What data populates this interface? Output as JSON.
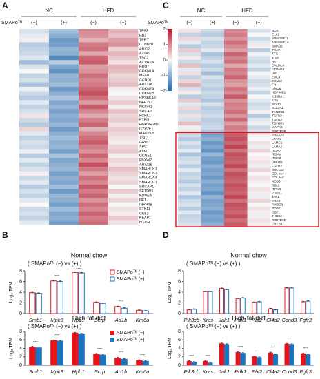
{
  "chart_data": [
    {
      "type": "heatmap",
      "panel": "A",
      "groups": [
        "NC",
        "HFD"
      ],
      "row_header": "SMAPoᵀᴺ",
      "columns": [
        "(−)",
        "(+)",
        "(−)",
        "(+)"
      ],
      "zlim": [
        -2,
        2
      ],
      "colors": {
        "low": "#2166ac",
        "mid": "#f7f7f7",
        "high": "#b2182b"
      },
      "rows": [
        "TP53",
        "RB1",
        "TERT",
        "CTNNB1",
        "ARID2",
        "AXIN1",
        "TSC2",
        "ACVR2A",
        "BRD7",
        "CDKN1A",
        "MEN1",
        "CCND1",
        "ARID1A",
        "CDKN2A",
        "CDKN2B",
        "RPS6KA3",
        "NFE2L2",
        "NCOR1",
        "SRCAP",
        "FCRL1",
        "PTEN",
        "HNRNP2B1",
        "CYP2E1",
        "MAP2K3",
        "TSC1",
        "GRPC",
        "APC",
        "ATM",
        "CCNE1",
        "FBXW7",
        "ARID1B",
        "SMARCE1",
        "SMARCB1",
        "SMARCA4",
        "SMARCC1",
        "SRCAP1",
        "SETDB1",
        "KDM6A",
        "NF1",
        "INPP4B",
        "STK11",
        "CUL3",
        "KEAP1",
        "mTOR"
      ],
      "values": [
        [
          -0.3,
          -0.8,
          1.0,
          0.6
        ],
        [
          -0.2,
          -1.0,
          0.9,
          0.5
        ],
        [
          0.1,
          -1.3,
          0.6,
          0.8
        ],
        [
          -0.6,
          -1.2,
          1.1,
          0.9
        ],
        [
          -0.5,
          -0.9,
          1.2,
          0.3
        ],
        [
          -0.4,
          -1.0,
          0.7,
          0.6
        ],
        [
          -0.2,
          -1.5,
          1.3,
          0.4
        ],
        [
          -0.8,
          -0.6,
          1.4,
          0.2
        ],
        [
          -0.3,
          -1.1,
          0.8,
          0.6
        ],
        [
          0.0,
          -1.4,
          0.9,
          0.5
        ],
        [
          -0.5,
          -0.9,
          1.2,
          0.3
        ],
        [
          -0.3,
          -1.0,
          1.0,
          0.4
        ],
        [
          -0.7,
          -0.8,
          1.1,
          0.5
        ],
        [
          -0.1,
          -1.3,
          1.3,
          0.1
        ],
        [
          -0.4,
          -1.0,
          1.5,
          0.0
        ],
        [
          -0.6,
          -0.7,
          1.2,
          0.2
        ],
        [
          -0.2,
          -1.1,
          0.8,
          0.4
        ],
        [
          -0.5,
          -0.9,
          1.4,
          0.1
        ],
        [
          -0.3,
          -1.2,
          1.0,
          0.5
        ],
        [
          0.2,
          -1.0,
          0.7,
          0.3
        ],
        [
          -0.4,
          -1.1,
          1.1,
          0.4
        ],
        [
          -0.6,
          -0.9,
          1.3,
          0.2
        ],
        [
          0.3,
          -1.3,
          0.6,
          0.4
        ],
        [
          -0.2,
          -1.0,
          1.0,
          0.3
        ],
        [
          -0.5,
          -0.8,
          1.2,
          0.2
        ],
        [
          -0.3,
          -1.0,
          1.4,
          0.1
        ],
        [
          -0.4,
          -0.9,
          1.1,
          0.3
        ],
        [
          -0.1,
          -1.2,
          0.9,
          0.4
        ],
        [
          -0.6,
          -0.7,
          1.3,
          0.1
        ],
        [
          -0.2,
          -1.1,
          1.0,
          0.3
        ],
        [
          -0.5,
          -1.0,
          1.5,
          0.2
        ],
        [
          -0.3,
          -0.9,
          1.1,
          0.5
        ],
        [
          0.1,
          -1.2,
          0.8,
          0.3
        ],
        [
          -0.4,
          -1.0,
          1.2,
          0.2
        ],
        [
          -0.2,
          -1.1,
          1.0,
          0.3
        ],
        [
          -0.6,
          -0.8,
          1.4,
          0.0
        ],
        [
          -0.3,
          -1.3,
          1.1,
          0.4
        ],
        [
          -0.5,
          -0.9,
          1.3,
          0.1
        ],
        [
          -0.2,
          -1.0,
          0.9,
          0.3
        ],
        [
          0.0,
          -1.2,
          1.2,
          0.0
        ],
        [
          -0.4,
          -0.8,
          1.0,
          0.2
        ],
        [
          -0.3,
          -1.1,
          1.3,
          0.1
        ],
        [
          -0.5,
          -1.0,
          1.1,
          0.4
        ],
        [
          -0.2,
          -1.2,
          1.2,
          0.2
        ]
      ]
    },
    {
      "type": "heatmap",
      "panel": "C",
      "groups": [
        "NC",
        "HFD"
      ],
      "row_header": "SMAPoᵀᴺ",
      "columns": [
        "(−)",
        "(+)",
        "(−)",
        "(+)"
      ],
      "zlim": [
        -2,
        2
      ],
      "colors": {
        "low": "#2166ac",
        "mid": "#f7f7f7",
        "high": "#b2182b"
      },
      "colorbar_ticks": [
        2,
        1,
        0,
        {
          "value": -1,
          "label": "−1"
        },
        {
          "value": -2,
          "label": "−2"
        }
      ],
      "highlight": {
        "first": 27,
        "last": 50,
        "color": "#e0141e"
      },
      "rows": [
        "BCR",
        "ELK1",
        "ARHGEF11",
        "ARHGEF1A",
        "SMAD2",
        "TRAF4",
        "TFG",
        "XIAP",
        "AKT",
        "CALML4",
        "CTNNA1",
        "DVL1",
        "EML4",
        "EGLN2",
        "FH",
        "GNGB",
        "HSP90B1",
        "IL13RA1",
        "IL15",
        "MSH6",
        "SLC2A1",
        "TXNRD1",
        "TGFB2",
        "TGFB3",
        "TGFBR1",
        "MAPK9",
        "PPP2R5B",
        "PRKAA2",
        "LPAR1",
        "LAMC1",
        "LAMA2",
        "ITGA7",
        "ITGAV",
        "ITGA3",
        "GNGB1",
        "FGFR2",
        "COL1A2",
        "COL4A4",
        "COL4A2",
        "NOS3",
        "RBL2",
        "ITPKB",
        "PDPK1",
        "JAK1",
        "KRAS",
        "PIK3CB",
        "PDPK",
        "CSF1",
        "THBS2",
        "PPP2R5E",
        "CREB3"
      ],
      "values": [
        [
          0.2,
          -0.4,
          1.0,
          -0.3
        ],
        [
          -0.5,
          -0.6,
          1.1,
          0.0
        ],
        [
          0.3,
          -0.3,
          0.9,
          -0.4
        ],
        [
          -0.2,
          -0.5,
          1.2,
          -0.2
        ],
        [
          -0.6,
          -0.4,
          1.0,
          0.1
        ],
        [
          0.4,
          -0.2,
          0.8,
          -0.6
        ],
        [
          -0.3,
          -0.7,
          1.3,
          -0.1
        ],
        [
          0.1,
          -0.5,
          1.0,
          -0.3
        ],
        [
          -0.4,
          -0.3,
          1.2,
          -0.4
        ],
        [
          0.5,
          -0.6,
          0.7,
          -0.2
        ],
        [
          -0.2,
          -0.4,
          1.1,
          -0.5
        ],
        [
          0.2,
          -0.8,
          1.0,
          0.0
        ],
        [
          -0.5,
          -0.3,
          1.3,
          -0.2
        ],
        [
          0.3,
          -0.5,
          0.9,
          -0.4
        ],
        [
          0.6,
          -0.4,
          0.8,
          -0.3
        ],
        [
          -0.3,
          -0.6,
          1.2,
          -0.1
        ],
        [
          0.1,
          -0.4,
          1.0,
          -0.5
        ],
        [
          -0.6,
          -0.5,
          1.4,
          0.0
        ],
        [
          0.4,
          -0.7,
          0.9,
          -0.2
        ],
        [
          -0.2,
          -0.3,
          1.1,
          -0.4
        ],
        [
          0.3,
          -0.6,
          1.0,
          -0.3
        ],
        [
          -0.4,
          -0.5,
          1.2,
          0.1
        ],
        [
          0.2,
          -0.4,
          0.9,
          -0.6
        ],
        [
          -0.3,
          -0.6,
          1.3,
          -0.2
        ],
        [
          0.5,
          -0.5,
          0.8,
          -0.1
        ],
        [
          -0.1,
          -0.4,
          1.1,
          -0.4
        ],
        [
          0.2,
          -0.7,
          1.0,
          -0.3
        ],
        [
          -0.4,
          -1.2,
          1.4,
          0.1
        ],
        [
          -0.6,
          -1.0,
          1.5,
          0.0
        ],
        [
          -0.3,
          -1.3,
          1.3,
          0.2
        ],
        [
          -0.5,
          -1.1,
          1.6,
          -0.1
        ],
        [
          -0.2,
          -1.4,
          1.2,
          0.3
        ],
        [
          -0.7,
          -0.9,
          1.5,
          0.0
        ],
        [
          -0.4,
          -1.2,
          1.4,
          0.1
        ],
        [
          -0.3,
          -1.3,
          1.3,
          0.2
        ],
        [
          -0.6,
          -1.0,
          1.6,
          -0.1
        ],
        [
          -0.2,
          -1.2,
          1.2,
          0.3
        ],
        [
          -0.5,
          -1.1,
          1.5,
          0.0
        ],
        [
          -0.4,
          -1.3,
          1.4,
          0.2
        ],
        [
          -0.6,
          -1.0,
          1.3,
          0.1
        ],
        [
          -0.3,
          -1.2,
          1.5,
          0.0
        ],
        [
          -0.5,
          -1.1,
          1.4,
          0.2
        ],
        [
          -0.2,
          -1.4,
          1.3,
          0.1
        ],
        [
          -0.7,
          -0.9,
          1.6,
          -0.1
        ],
        [
          -0.4,
          -1.2,
          1.2,
          0.3
        ],
        [
          -0.3,
          -1.1,
          1.5,
          0.0
        ],
        [
          -0.6,
          -1.0,
          1.4,
          0.2
        ],
        [
          -0.2,
          -1.3,
          1.3,
          0.1
        ],
        [
          -0.5,
          -1.1,
          1.5,
          -0.1
        ],
        [
          -0.4,
          -1.2,
          1.2,
          0.2
        ],
        [
          -0.3,
          -1.0,
          1.4,
          0.1
        ]
      ]
    },
    {
      "type": "bar",
      "panel": "B",
      "style": "outline",
      "title": "Normal chow",
      "subtitle": "( SMAPoᵀᴺ (−) vs (+) )",
      "y_label": "Log₂ TPM",
      "categories": [
        "Smb1",
        "Mpk3",
        "Hpb1",
        "Scrp",
        "Ad1b",
        "Km6a"
      ],
      "ylim": [
        0,
        8
      ],
      "yticks": [
        0,
        2,
        4,
        6,
        8
      ],
      "legend": "upper right",
      "significance": [
        "---",
        "---",
        "---",
        null,
        "---",
        null
      ],
      "series": [
        {
          "name": "SMAPoᵀᴺ (−)",
          "color": "#e8141b",
          "values": [
            3.9,
            6.1,
            7.7,
            2.1,
            1.3,
            0.6
          ],
          "errors": [
            0.1,
            0.1,
            0.1,
            0.1,
            0.1,
            0.1
          ]
        },
        {
          "name": "SMAPoᵀᴺ (+)",
          "color": "#1a74c0",
          "values": [
            3.8,
            6.0,
            7.6,
            1.9,
            1.0,
            0.5
          ],
          "errors": [
            0.1,
            0.1,
            0.1,
            0.1,
            0.1,
            0.1
          ]
        }
      ]
    },
    {
      "type": "bar",
      "style": "filled",
      "title": "High-fat diet",
      "subtitle": "( SMAPoᵀᴺ (−) vs (+) )",
      "y_label": "Log₂ TPM",
      "categories": [
        "Smb1",
        "Mpk3",
        "Hpb1",
        "Scrp",
        "Ad1b",
        "Km6a"
      ],
      "ylim": [
        0,
        8
      ],
      "yticks": [
        0,
        2,
        4,
        6,
        8
      ],
      "legend": "upper right",
      "significance": [
        "---",
        "---",
        "---",
        "---",
        "---",
        "---"
      ],
      "series": [
        {
          "name": "SMAPoᵀᴺ (−)",
          "color": "#e8141b",
          "values": [
            4.4,
            5.9,
            7.7,
            2.7,
            1.8,
            1.2
          ],
          "errors": [
            0.1,
            0.1,
            0.1,
            0.1,
            0.1,
            0.1
          ]
        },
        {
          "name": "SMAPoᵀᴺ (+)",
          "color": "#1a74c0",
          "values": [
            4.2,
            5.8,
            7.5,
            2.5,
            1.5,
            1.0
          ],
          "errors": [
            0.1,
            0.1,
            0.1,
            0.1,
            0.1,
            0.1
          ]
        }
      ]
    },
    {
      "type": "bar",
      "panel": "D",
      "style": "outline",
      "title": "Normal chow",
      "subtitle": "( SMAPoᵀᴺ (−) vs (+) )",
      "y_label": "Log₂ TPM",
      "categories": [
        "Pik3cb",
        "Kras",
        "Jak1",
        "Pdk1",
        "Rbl2",
        "Cl4a2",
        "Ccnd3",
        "Fgfr3"
      ],
      "ylim": [
        0,
        8
      ],
      "yticks": [
        0,
        2,
        4,
        6,
        8
      ],
      "significance": [
        null,
        null,
        "---",
        null,
        null,
        null,
        null,
        null
      ],
      "series": [
        {
          "name": "SMAPoᵀᴺ (−)",
          "color": "#e8141b",
          "values": [
            0.7,
            4.1,
            4.7,
            2.8,
            2.1,
            0.9,
            4.8,
            2.2
          ],
          "errors": [
            0.1,
            0.1,
            0.1,
            0.1,
            0.1,
            0.1,
            0.1,
            0.1
          ]
        },
        {
          "name": "SMAPoᵀᴺ (+)",
          "color": "#1a74c0",
          "values": [
            0.8,
            4.1,
            4.5,
            2.9,
            2.2,
            0.7,
            4.8,
            2.3
          ],
          "errors": [
            0.1,
            0.1,
            0.1,
            0.1,
            0.1,
            0.1,
            0.1,
            0.1
          ]
        }
      ]
    },
    {
      "type": "bar",
      "style": "filled",
      "title": "High-fat diet",
      "subtitle": "( SMAPoᵀᴺ (−) vs (+) )",
      "y_label": "Log₂ TPM",
      "categories": [
        "Pik3cb",
        "Kras",
        "Jak1",
        "Pdk1",
        "Rbl2",
        "Cl4a2",
        "Ccnd3",
        "Fgfr3"
      ],
      "ylim": [
        0,
        8
      ],
      "yticks": [
        0,
        2,
        4,
        6,
        8
      ],
      "significance": [
        "---",
        "---",
        "---",
        "---",
        "---",
        "---",
        "---",
        "---"
      ],
      "series": [
        {
          "name": "SMAPoᵀᴺ (−)",
          "color": "#e8141b",
          "values": [
            1.0,
            1.0,
            5.2,
            3.1,
            2.1,
            3.0,
            5.1,
            2.8
          ],
          "errors": [
            0.1,
            0.1,
            0.1,
            0.1,
            0.1,
            0.1,
            0.1,
            0.1
          ]
        },
        {
          "name": "SMAPoᵀᴺ (+)",
          "color": "#1a74c0",
          "values": [
            0.8,
            0.6,
            5.0,
            2.9,
            1.9,
            2.6,
            5.0,
            2.6
          ],
          "errors": [
            0.1,
            0.1,
            0.1,
            0.1,
            0.1,
            0.1,
            0.1,
            0.1
          ]
        }
      ]
    }
  ]
}
